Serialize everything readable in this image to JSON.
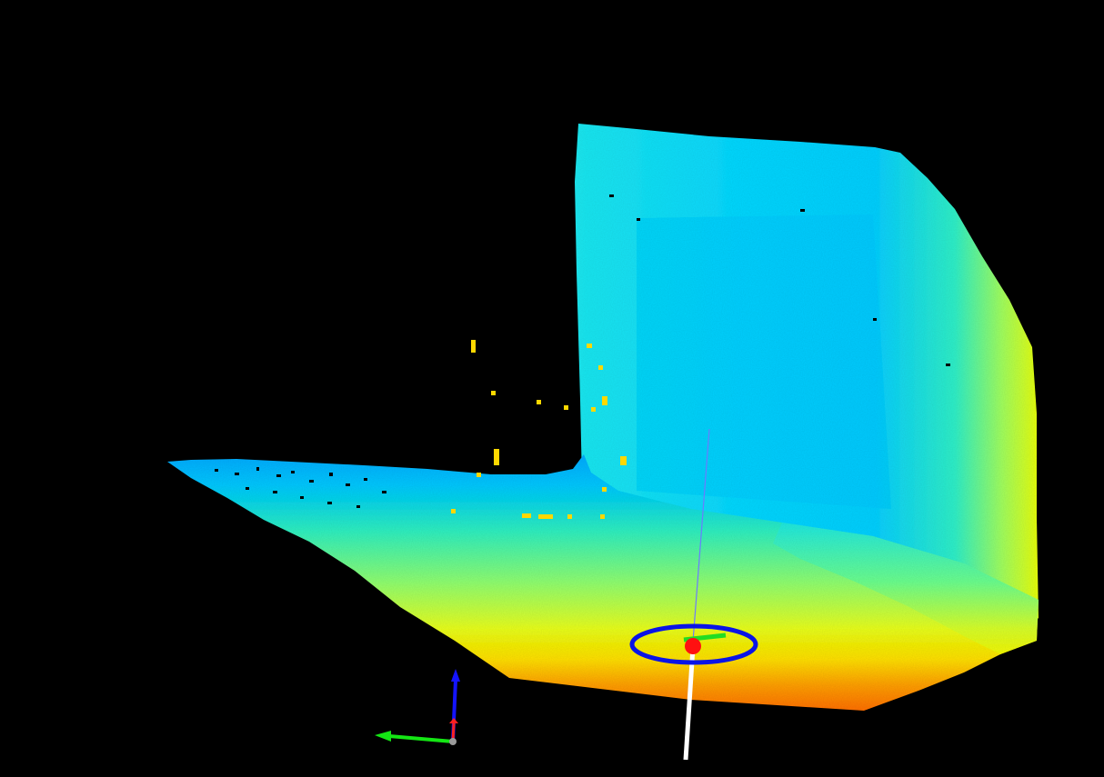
{
  "scene": {
    "background": "#000000",
    "colormap": [
      "#00a8ff",
      "#00d8ff",
      "#20ffd8",
      "#80ff80",
      "#d8ff20",
      "#ffff00",
      "#ffc000",
      "#ff8000"
    ],
    "outlier_color": "#ffd800",
    "icons": {
      "point_cloud": "point-cloud-icon",
      "marker_ring": "ring-marker-icon",
      "marker_point": "target-dot-icon",
      "axes": "axis-gizmo-icon"
    },
    "marker": {
      "ring_color": "#0a14e6",
      "point_color": "#ff1010",
      "heading_color": "#22dd22",
      "ray_color": "#6a7cff",
      "stem_color": "#ffffff"
    },
    "axes_colors": {
      "x": "#ff2020",
      "y": "#14e614",
      "z": "#1414ff",
      "origin": "#9a9a9a"
    }
  }
}
